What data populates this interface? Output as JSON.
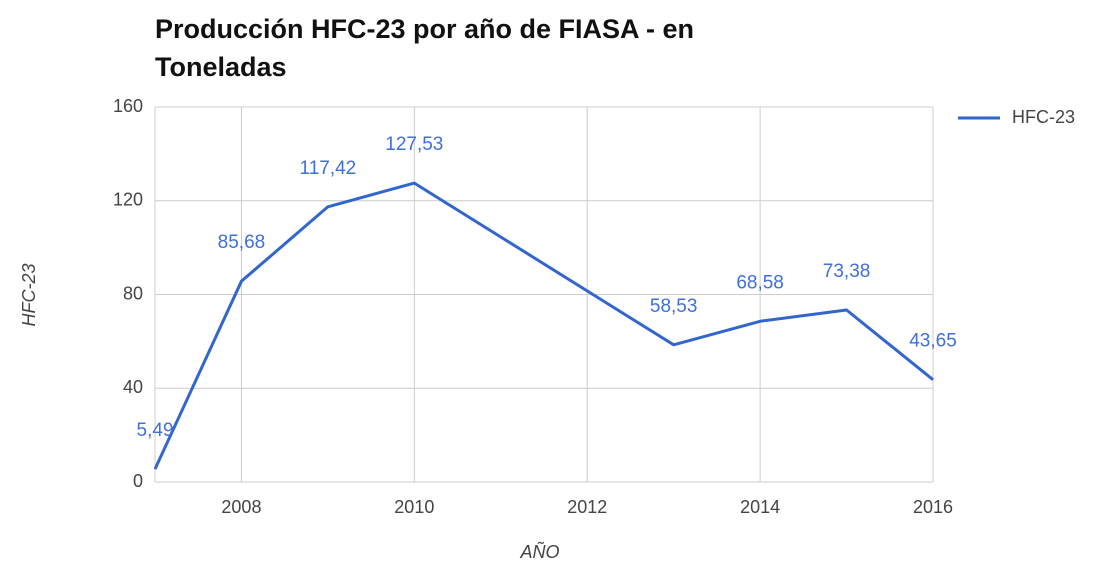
{
  "chart_data": {
    "type": "line",
    "title": "Producción HFC-23 por año de FIASA - en Toneladas",
    "x_label": "AÑO",
    "y_label": "HFC-23",
    "x": [
      2007,
      2008,
      2009,
      2010,
      2013,
      2014,
      2015,
      2016
    ],
    "series": [
      {
        "name": "HFC-23",
        "color": "#3366cc",
        "values": [
          5.49,
          85.68,
          117.42,
          127.53,
          58.53,
          68.58,
          73.38,
          43.65
        ],
        "value_labels": [
          "5,49",
          "85,68",
          "117,42",
          "127,53",
          "58,53",
          "68,58",
          "73,38",
          "43,65"
        ]
      }
    ],
    "xlim": [
      2007,
      2016
    ],
    "xticks": [
      2008,
      2010,
      2012,
      2014,
      2016
    ],
    "ylim": [
      0,
      160
    ],
    "yticks": [
      0,
      40,
      80,
      120,
      160
    ],
    "grid": true,
    "legend": "right"
  }
}
